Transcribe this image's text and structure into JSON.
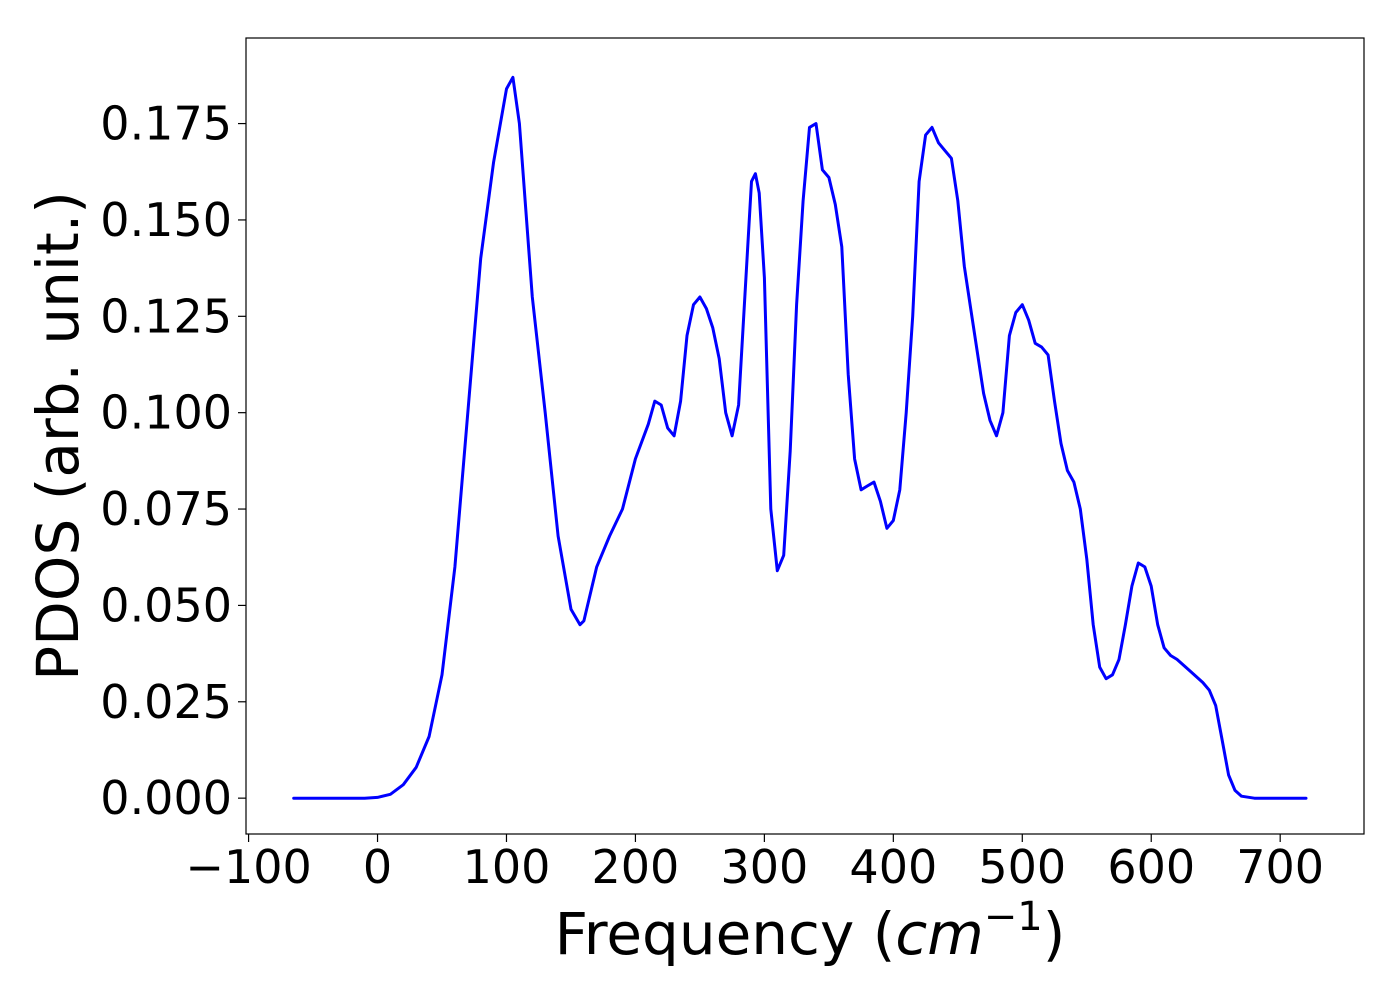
{
  "chart_data": {
    "type": "line",
    "title": "",
    "xlabel": "Frequency",
    "xlabel_unit": "cm",
    "xlabel_unit_exp": "−1",
    "ylabel": "PDOS (arb. unit.)",
    "xlim": [
      -102,
      765
    ],
    "ylim": [
      -0.0093,
      0.1972
    ],
    "x_ticks": [
      -100,
      0,
      100,
      200,
      300,
      400,
      500,
      600,
      700
    ],
    "x_tick_labels": [
      "−100",
      "0",
      "100",
      "200",
      "300",
      "400",
      "500",
      "600",
      "700"
    ],
    "y_ticks": [
      0,
      0.025,
      0.05,
      0.075,
      0.1,
      0.125,
      0.15,
      0.175
    ],
    "y_tick_labels": [
      "0.000",
      "0.025",
      "0.050",
      "0.075",
      "0.100",
      "0.125",
      "0.150",
      "0.175"
    ],
    "grid": false,
    "legend": "none",
    "series_color": "#0000ff",
    "series": [
      {
        "x": [
          -65,
          -10,
          0,
          10,
          20,
          30,
          40,
          50,
          60,
          70,
          80,
          90,
          100,
          105,
          110,
          120,
          130,
          140,
          150,
          157,
          160,
          170,
          180,
          190,
          200,
          210,
          215,
          220,
          225,
          230,
          235,
          240,
          245,
          250,
          255,
          260,
          265,
          270,
          275,
          280,
          290,
          293,
          296,
          300,
          305,
          310,
          315,
          320,
          325,
          330,
          335,
          340,
          345,
          350,
          355,
          360,
          365,
          370,
          375,
          380,
          385,
          390,
          395,
          400,
          405,
          410,
          415,
          420,
          425,
          430,
          435,
          440,
          445,
          450,
          455,
          460,
          470,
          475,
          480,
          485,
          490,
          495,
          500,
          505,
          510,
          515,
          520,
          525,
          530,
          535,
          540,
          545,
          550,
          555,
          560,
          565,
          570,
          575,
          580,
          585,
          590,
          595,
          600,
          605,
          610,
          615,
          620,
          630,
          640,
          645,
          650,
          655,
          660,
          665,
          670,
          680,
          720
        ],
        "y": [
          0,
          0,
          0.0002,
          0.001,
          0.0035,
          0.008,
          0.016,
          0.032,
          0.06,
          0.1,
          0.14,
          0.165,
          0.184,
          0.187,
          0.175,
          0.13,
          0.1,
          0.068,
          0.049,
          0.045,
          0.046,
          0.06,
          0.068,
          0.075,
          0.088,
          0.097,
          0.103,
          0.102,
          0.096,
          0.094,
          0.103,
          0.12,
          0.128,
          0.13,
          0.127,
          0.122,
          0.114,
          0.1,
          0.094,
          0.102,
          0.16,
          0.162,
          0.157,
          0.135,
          0.075,
          0.059,
          0.063,
          0.09,
          0.128,
          0.155,
          0.174,
          0.175,
          0.163,
          0.161,
          0.154,
          0.143,
          0.11,
          0.088,
          0.08,
          0.081,
          0.082,
          0.077,
          0.07,
          0.072,
          0.08,
          0.1,
          0.125,
          0.16,
          0.172,
          0.174,
          0.17,
          0.168,
          0.166,
          0.155,
          0.138,
          0.127,
          0.105,
          0.098,
          0.094,
          0.1,
          0.12,
          0.126,
          0.128,
          0.124,
          0.118,
          0.117,
          0.115,
          0.103,
          0.092,
          0.085,
          0.082,
          0.075,
          0.062,
          0.045,
          0.034,
          0.031,
          0.032,
          0.036,
          0.045,
          0.055,
          0.061,
          0.06,
          0.055,
          0.045,
          0.039,
          0.037,
          0.036,
          0.033,
          0.03,
          0.028,
          0.024,
          0.015,
          0.006,
          0.002,
          0.0005,
          0,
          0
        ]
      }
    ]
  }
}
